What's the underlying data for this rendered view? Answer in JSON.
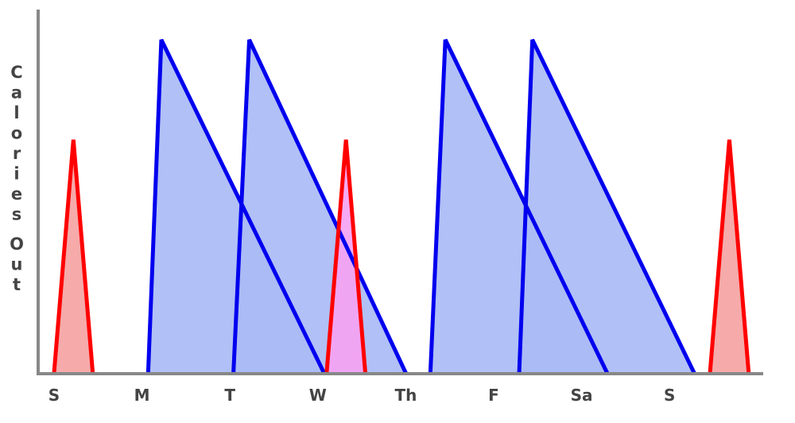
{
  "chart_data": {
    "type": "area",
    "title": "",
    "xlabel": "",
    "ylabel": "Calories Out",
    "ylim": [
      0,
      10
    ],
    "grid": false,
    "legend": "none",
    "x_ticks": [
      {
        "label": "S",
        "x": 0
      },
      {
        "label": "M",
        "x": 1
      },
      {
        "label": "T",
        "x": 2
      },
      {
        "label": "W",
        "x": 3
      },
      {
        "label": "Th",
        "x": 4
      },
      {
        "label": "F",
        "x": 5
      },
      {
        "label": "Sa",
        "x": 6
      },
      {
        "label": "S",
        "x": 7
      }
    ],
    "series": [
      {
        "kind": "short-spike",
        "stroke": "#ff0000",
        "fill": "#f5a3a3",
        "shapes": [
          {
            "start": 0.0,
            "peak": 0.22,
            "end": 0.44,
            "peak_y": 7.0
          },
          {
            "start": 3.1,
            "peak": 3.32,
            "end": 3.54,
            "peak_y": 7.0,
            "fill": "#f5a3f2"
          },
          {
            "start": 7.46,
            "peak": 7.68,
            "end": 7.9,
            "peak_y": 7.0
          }
        ]
      },
      {
        "kind": "long-decay",
        "stroke": "#0000ee",
        "fill": "#aabbf5",
        "shapes": [
          {
            "start": 1.07,
            "peak": 1.22,
            "end": 3.07,
            "peak_y": 10.0
          },
          {
            "start": 2.04,
            "peak": 2.22,
            "end": 4.0,
            "peak_y": 10.0
          },
          {
            "start": 4.28,
            "peak": 4.45,
            "end": 6.29,
            "peak_y": 10.0
          },
          {
            "start": 5.29,
            "peak": 5.44,
            "end": 7.28,
            "peak_y": 10.0
          }
        ]
      }
    ],
    "colors": {
      "axis": "#888888",
      "text": "#444444"
    }
  }
}
